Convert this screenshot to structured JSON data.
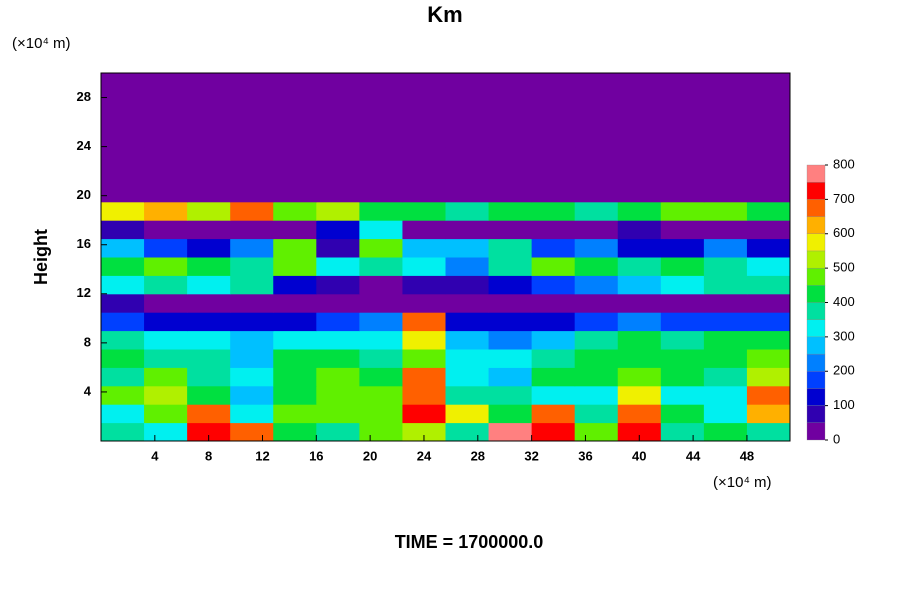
{
  "chart_data": {
    "type": "heatmap",
    "title": "Km",
    "x_unit_label": "(×10⁴ m)",
    "y_unit_label": "(×10⁴ m)",
    "y_label": "Height",
    "footer": "TIME = 1700000.0",
    "xlim": [
      0,
      51.2
    ],
    "ylim": [
      0,
      30
    ],
    "xticks": [
      4,
      8,
      12,
      16,
      20,
      24,
      28,
      32,
      36,
      40,
      44,
      48
    ],
    "yticks": [
      4,
      8,
      12,
      16,
      20,
      24,
      28
    ],
    "x_bins": [
      0,
      3.2,
      6.4,
      9.6,
      12.8,
      16,
      19.2,
      22.4,
      25.6,
      28.8,
      32,
      35.2,
      38.4,
      41.6,
      44.8,
      48,
      51.2
    ],
    "y_bins": [
      0,
      1.5,
      3,
      4.5,
      6,
      7.5,
      9,
      10.5,
      12,
      13.5,
      15,
      16.5,
      18,
      19.5,
      21,
      22.5,
      24,
      25.5,
      27,
      28.5,
      30
    ],
    "values": [
      [
        350,
        300,
        700,
        650,
        400,
        350,
        450,
        500,
        350,
        750,
        700,
        450,
        700,
        350,
        400,
        350
      ],
      [
        300,
        450,
        650,
        300,
        450,
        450,
        450,
        700,
        550,
        400,
        650,
        350,
        650,
        400,
        300,
        600
      ],
      [
        450,
        500,
        400,
        250,
        400,
        450,
        450,
        650,
        350,
        350,
        300,
        300,
        550,
        300,
        300,
        650
      ],
      [
        350,
        450,
        350,
        300,
        400,
        450,
        400,
        650,
        300,
        250,
        400,
        400,
        450,
        400,
        350,
        500
      ],
      [
        400,
        350,
        350,
        250,
        400,
        400,
        350,
        450,
        300,
        300,
        350,
        400,
        400,
        400,
        400,
        450
      ],
      [
        350,
        300,
        300,
        250,
        300,
        300,
        300,
        550,
        250,
        200,
        250,
        350,
        400,
        350,
        400,
        400
      ],
      [
        150,
        100,
        100,
        100,
        100,
        150,
        200,
        650,
        100,
        100,
        100,
        150,
        200,
        150,
        150,
        150
      ],
      [
        50,
        0,
        0,
        0,
        0,
        0,
        0,
        0,
        0,
        0,
        0,
        0,
        0,
        0,
        0,
        0
      ],
      [
        300,
        350,
        300,
        350,
        100,
        50,
        0,
        50,
        50,
        100,
        150,
        200,
        250,
        300,
        350,
        350
      ],
      [
        400,
        450,
        400,
        350,
        450,
        300,
        350,
        300,
        200,
        350,
        450,
        400,
        350,
        400,
        350,
        300
      ],
      [
        250,
        150,
        100,
        200,
        450,
        50,
        450,
        250,
        250,
        350,
        150,
        200,
        100,
        100,
        200,
        100
      ],
      [
        50,
        0,
        0,
        0,
        0,
        100,
        300,
        0,
        0,
        0,
        0,
        0,
        50,
        0,
        0,
        0
      ],
      [
        550,
        600,
        500,
        650,
        450,
        500,
        400,
        400,
        350,
        400,
        400,
        350,
        400,
        450,
        450,
        400
      ],
      [
        0,
        0,
        0,
        0,
        0,
        0,
        0,
        0,
        0,
        0,
        0,
        0,
        0,
        0,
        0,
        0
      ],
      [
        0,
        0,
        0,
        0,
        0,
        0,
        0,
        0,
        0,
        0,
        0,
        0,
        0,
        0,
        0,
        0
      ],
      [
        0,
        0,
        0,
        0,
        0,
        0,
        0,
        0,
        0,
        0,
        0,
        0,
        0,
        0,
        0,
        0
      ],
      [
        0,
        0,
        0,
        0,
        0,
        0,
        0,
        0,
        0,
        0,
        0,
        0,
        0,
        0,
        0,
        0
      ],
      [
        0,
        0,
        0,
        0,
        0,
        0,
        0,
        0,
        0,
        0,
        0,
        0,
        0,
        0,
        0,
        0
      ],
      [
        0,
        0,
        0,
        0,
        0,
        0,
        0,
        0,
        0,
        0,
        0,
        0,
        0,
        0,
        0,
        0
      ],
      [
        0,
        0,
        0,
        0,
        0,
        0,
        0,
        0,
        0,
        0,
        0,
        0,
        0,
        0,
        0,
        0
      ]
    ],
    "colorbar": {
      "levels": [
        0,
        50,
        100,
        150,
        200,
        250,
        300,
        350,
        400,
        450,
        500,
        550,
        600,
        650,
        700,
        750,
        800
      ],
      "colors": [
        "#7000a0",
        "#3000b0",
        "#0000d0",
        "#0040ff",
        "#0080ff",
        "#00c0ff",
        "#00f0f0",
        "#00e0a0",
        "#00e040",
        "#60f000",
        "#b0f000",
        "#f0f000",
        "#ffb000",
        "#ff6000",
        "#ff0000",
        "#ff8080"
      ],
      "ticks": [
        0,
        100,
        200,
        300,
        400,
        500,
        600,
        700,
        800
      ]
    }
  }
}
